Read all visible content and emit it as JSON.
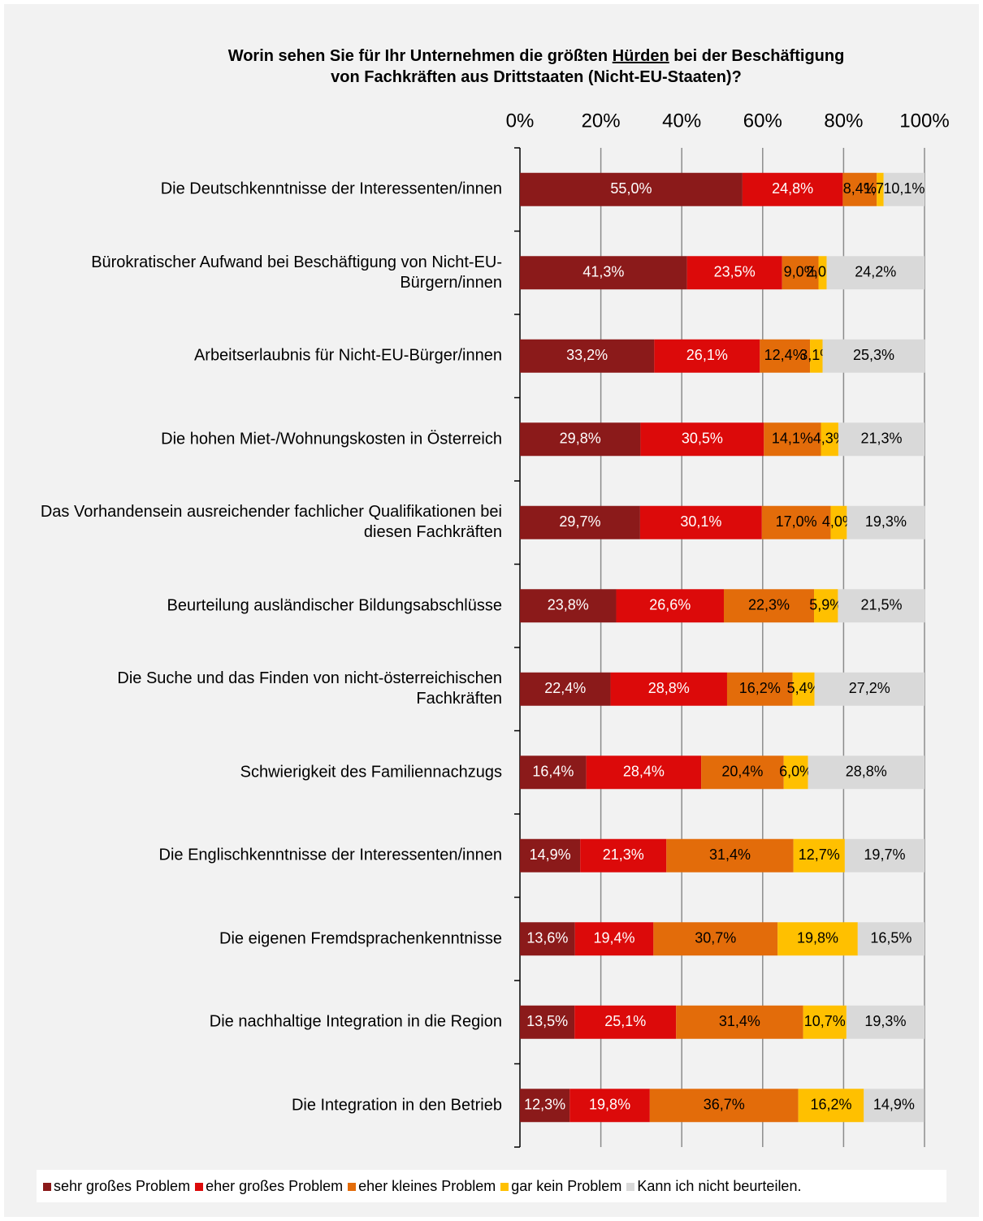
{
  "chart_data": {
    "type": "stacked_barh",
    "title": [
      "Worin sehen Sie für Ihr Unternehmen die größten ",
      "Hürden",
      " bei der Beschäftigung",
      "von Fachkräften aus Drittstaaten (Nicht-EU-Staaten)?"
    ],
    "categories": [
      "Die Deutschkenntnisse der Interessenten/innen",
      "Bürokratischer Aufwand bei Beschäftigung von Nicht-EU-Bürgern/innen",
      "Arbeitserlaubnis für Nicht-EU-Bürger/innen",
      "Die hohen Miet-/Wohnungskosten in Österreich",
      "Das Vorhandensein ausreichender fachlicher Qualifikationen bei diesen Fachkräften",
      "Beurteilung ausländischer Bildungsabschlüsse",
      "Die Suche und das Finden von nicht-österreichischen Fachkräften",
      "Schwierigkeit des Familiennachzugs",
      "Die Englischkenntnisse der Interessenten/innen",
      "Die eigenen Fremdsprachenkenntnisse",
      "Die nachhaltige Integration in die Region",
      "Die Integration in den Betrieb"
    ],
    "series": [
      {
        "name": "sehr großes Problem",
        "color": "#8b1a1a",
        "label_color": "#ffffff",
        "values": [
          55.0,
          41.3,
          33.2,
          29.8,
          29.7,
          23.8,
          22.4,
          16.4,
          14.9,
          13.6,
          13.5,
          12.3
        ],
        "value_labels": [
          "55,0%",
          "41,3%",
          "33,2%",
          "29,8%",
          "29,7%",
          "23,8%",
          "22,4%",
          "16,4%",
          "14,9%",
          "13,6%",
          "13,5%",
          "12,3%"
        ]
      },
      {
        "name": "eher großes Problem",
        "color": "#dc0a0a",
        "label_color": "#ffffff",
        "values": [
          24.8,
          23.5,
          26.1,
          30.5,
          30.1,
          26.6,
          28.8,
          28.4,
          21.3,
          19.4,
          25.1,
          19.8
        ],
        "value_labels": [
          "24,8%",
          "23,5%",
          "26,1%",
          "30,5%",
          "30,1%",
          "26,6%",
          "28,8%",
          "28,4%",
          "21,3%",
          "19,4%",
          "25,1%",
          "19,8%"
        ]
      },
      {
        "name": "eher kleines Problem",
        "color": "#e36c0a",
        "label_color": "#000000",
        "values": [
          8.4,
          9.0,
          12.4,
          14.1,
          17.0,
          22.3,
          16.2,
          20.4,
          31.4,
          30.7,
          31.4,
          36.7
        ],
        "value_labels": [
          "8,4%",
          "9,0%",
          "12,4%",
          "14,1%",
          "17,0%",
          "22,3%",
          "16,2%",
          "20,4%",
          "31,4%",
          "30,7%",
          "31,4%",
          "36,7%"
        ]
      },
      {
        "name": "gar kein Problem",
        "color": "#ffc000",
        "label_color": "#000000",
        "values": [
          1.7,
          2.0,
          3.1,
          4.3,
          4.0,
          5.9,
          5.4,
          6.0,
          12.7,
          19.8,
          10.7,
          16.2
        ],
        "value_labels": [
          "1,7%",
          "2,0%",
          "3,1%",
          "4,3%",
          "4,0%",
          "5,9%",
          "5,4%",
          "6,0%",
          "12,7%",
          "19,8%",
          "10,7%",
          "16,2%"
        ]
      },
      {
        "name": "Kann ich nicht beurteilen.",
        "color": "#d9d9d9",
        "label_color": "#000000",
        "values": [
          10.1,
          24.2,
          25.3,
          21.3,
          19.3,
          21.5,
          27.2,
          28.8,
          19.7,
          16.5,
          19.3,
          14.9
        ],
        "value_labels": [
          "10,1%",
          "24,2%",
          "25,3%",
          "21,3%",
          "19,3%",
          "21,5%",
          "27,2%",
          "28,8%",
          "19,7%",
          "16,5%",
          "19,3%",
          "14,9%"
        ]
      }
    ],
    "xlim": [
      0,
      100
    ],
    "xticks": [
      {
        "value": 0,
        "label": "0%"
      },
      {
        "value": 20,
        "label": "20%"
      },
      {
        "value": 40,
        "label": "40%"
      },
      {
        "value": 60,
        "label": "60%"
      },
      {
        "value": 80,
        "label": "80%"
      },
      {
        "value": 100,
        "label": "100%"
      }
    ],
    "grid": true,
    "legend": "bottom"
  }
}
